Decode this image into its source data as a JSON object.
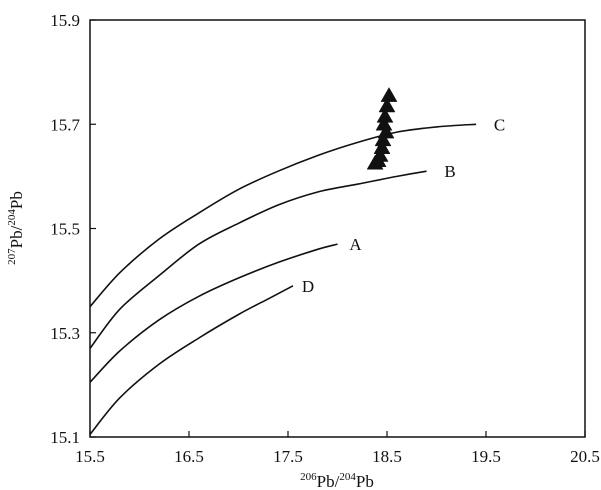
{
  "chart_data": {
    "type": "line",
    "xlabel": {
      "pre_sup": "206",
      "mid": "Pb/",
      "mid_sup": "204",
      "end": "Pb"
    },
    "ylabel": {
      "pre_sup": "207",
      "mid": "Pb/",
      "mid_sup": "204",
      "end": "Pb"
    },
    "xlim": [
      15.5,
      20.5
    ],
    "ylim": [
      15.1,
      15.9
    ],
    "x_ticks": [
      15.5,
      16.5,
      17.5,
      18.5,
      19.5,
      20.5
    ],
    "x_tick_labels": [
      "15.5",
      "16.5",
      "17.5",
      "18.5",
      "19.5",
      "20.5"
    ],
    "y_ticks": [
      15.1,
      15.3,
      15.5,
      15.7,
      15.9
    ],
    "y_tick_labels": [
      "15.1",
      "15.3",
      "15.5",
      "15.7",
      "15.9"
    ],
    "grid": false,
    "series": [
      {
        "name": "C",
        "x": [
          15.5,
          15.8,
          16.2,
          16.6,
          17.0,
          17.4,
          17.8,
          18.2,
          18.6,
          19.0,
          19.4
        ],
        "y": [
          15.35,
          15.415,
          15.48,
          15.53,
          15.575,
          15.61,
          15.64,
          15.665,
          15.685,
          15.695,
          15.7
        ]
      },
      {
        "name": "B",
        "x": [
          15.5,
          15.8,
          16.2,
          16.6,
          17.0,
          17.4,
          17.8,
          18.2,
          18.6,
          18.9
        ],
        "y": [
          15.27,
          15.345,
          15.41,
          15.47,
          15.51,
          15.545,
          15.57,
          15.585,
          15.6,
          15.61
        ]
      },
      {
        "name": "A",
        "x": [
          15.5,
          15.8,
          16.2,
          16.6,
          17.0,
          17.4,
          17.8,
          18.0
        ],
        "y": [
          15.205,
          15.265,
          15.325,
          15.37,
          15.405,
          15.435,
          15.46,
          15.47
        ]
      },
      {
        "name": "D",
        "x": [
          15.5,
          15.8,
          16.2,
          16.6,
          17.0,
          17.3,
          17.55
        ],
        "y": [
          15.105,
          15.175,
          15.24,
          15.29,
          15.335,
          15.365,
          15.39
        ]
      }
    ],
    "curve_labels": [
      {
        "text": "C",
        "x": 19.58,
        "y": 15.7
      },
      {
        "text": "B",
        "x": 19.08,
        "y": 15.61
      },
      {
        "text": "A",
        "x": 18.12,
        "y": 15.47
      },
      {
        "text": "D",
        "x": 17.64,
        "y": 15.39
      }
    ],
    "triangles": [
      {
        "x": 18.52,
        "y": 15.755
      },
      {
        "x": 18.5,
        "y": 15.735
      },
      {
        "x": 18.48,
        "y": 15.715
      },
      {
        "x": 18.47,
        "y": 15.7
      },
      {
        "x": 18.49,
        "y": 15.685
      },
      {
        "x": 18.46,
        "y": 15.67
      },
      {
        "x": 18.45,
        "y": 15.655
      },
      {
        "x": 18.43,
        "y": 15.64
      },
      {
        "x": 18.41,
        "y": 15.63
      },
      {
        "x": 18.38,
        "y": 15.625
      }
    ]
  }
}
